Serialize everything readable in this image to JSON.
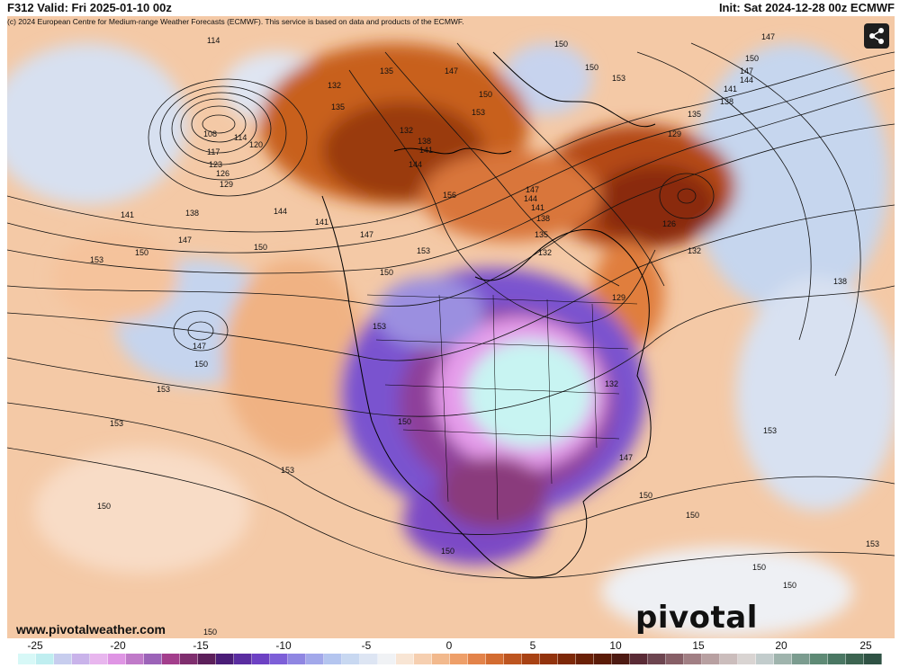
{
  "header": {
    "valid_text": "F312 Valid: Fri 2025-01-10 00z",
    "init_text": "Init: Sat 2024-12-28 00z ECMWF"
  },
  "copyright": "(c) 2024 European Centre for Medium-range Weather Forecasts (ECMWF). This service is based on data and products of the ECMWF.",
  "website": "www.pivotalweather.com",
  "brand": "pivotal weather",
  "share_icon": "share-icon",
  "colors": {
    "cold_deep": "#6a3aa8",
    "cold_mid": "#8a5ad8",
    "cold_pink": "#e39ae8",
    "cold_cyan": "#bdf4f0",
    "cool_blue": "#c3d4ec",
    "warm_peach": "#f4c9a6",
    "warm_orange": "#e0823c",
    "warm_deep": "#a34012"
  },
  "colorbar": {
    "ticks": [
      "-25",
      "-20",
      "-15",
      "-10",
      "-5",
      "0",
      "5",
      "10",
      "15",
      "20",
      "25"
    ],
    "colors": [
      "#d7f8f7",
      "#bfeef0",
      "#c7cdee",
      "#c9b3ea",
      "#e8b6ee",
      "#df95e4",
      "#c07ac9",
      "#9c63b8",
      "#a33e8c",
      "#7f2e6e",
      "#5c1f5a",
      "#4a1d77",
      "#5a2da0",
      "#6d41c4",
      "#7d5fd8",
      "#8f86e2",
      "#a2a8ea",
      "#b4c5ef",
      "#c8d8f1",
      "#dde5f3",
      "#f0f2f5",
      "#f8e5d4",
      "#f6cfb0",
      "#f2b98d",
      "#ee9f69",
      "#e3834a",
      "#d36c31",
      "#bd5520",
      "#a84214",
      "#92330d",
      "#7d2808",
      "#6a2006",
      "#5b1b07",
      "#4d1a12",
      "#5a2b36",
      "#6d4550",
      "#875f67",
      "#a17f84",
      "#b8a0a1",
      "#cbbdbc",
      "#d9d4d2",
      "#c2cccc",
      "#9fb4ad",
      "#7b9c8f",
      "#5e8a75",
      "#4a7763",
      "#3c6451",
      "#2f5244"
    ]
  },
  "map_labels": [
    {
      "text": "114"
    },
    {
      "text": "108"
    },
    {
      "text": "114"
    },
    {
      "text": "117"
    },
    {
      "text": "120"
    },
    {
      "text": "123"
    },
    {
      "text": "126"
    },
    {
      "text": "129"
    },
    {
      "text": "141"
    },
    {
      "text": "138"
    },
    {
      "text": "147"
    },
    {
      "text": "144"
    },
    {
      "text": "141"
    },
    {
      "text": "150"
    },
    {
      "text": "153"
    },
    {
      "text": "150"
    },
    {
      "text": "147"
    },
    {
      "text": "150"
    },
    {
      "text": "153"
    },
    {
      "text": "153"
    },
    {
      "text": "153"
    },
    {
      "text": "150"
    },
    {
      "text": "150"
    },
    {
      "text": "150"
    },
    {
      "text": "150"
    },
    {
      "text": "135"
    },
    {
      "text": "132"
    },
    {
      "text": "135"
    },
    {
      "text": "132"
    },
    {
      "text": "138"
    },
    {
      "text": "141"
    },
    {
      "text": "144"
    },
    {
      "text": "147"
    },
    {
      "text": "150"
    },
    {
      "text": "153"
    },
    {
      "text": "156"
    },
    {
      "text": "147"
    },
    {
      "text": "144"
    },
    {
      "text": "141"
    },
    {
      "text": "138"
    },
    {
      "text": "135"
    },
    {
      "text": "132"
    },
    {
      "text": "153"
    },
    {
      "text": "129"
    },
    {
      "text": "132"
    },
    {
      "text": "147"
    },
    {
      "text": "150"
    },
    {
      "text": "153"
    },
    {
      "text": "150"
    },
    {
      "text": "150"
    },
    {
      "text": "147"
    },
    {
      "text": "150"
    },
    {
      "text": "153"
    },
    {
      "text": "147"
    },
    {
      "text": "144"
    },
    {
      "text": "141"
    },
    {
      "text": "138"
    },
    {
      "text": "135"
    },
    {
      "text": "129"
    },
    {
      "text": "126"
    },
    {
      "text": "132"
    },
    {
      "text": "138"
    },
    {
      "text": "153"
    },
    {
      "text": "153"
    },
    {
      "text": "150"
    },
    {
      "text": "150"
    },
    {
      "text": "150"
    },
    {
      "text": "150"
    },
    {
      "text": "147"
    }
  ]
}
